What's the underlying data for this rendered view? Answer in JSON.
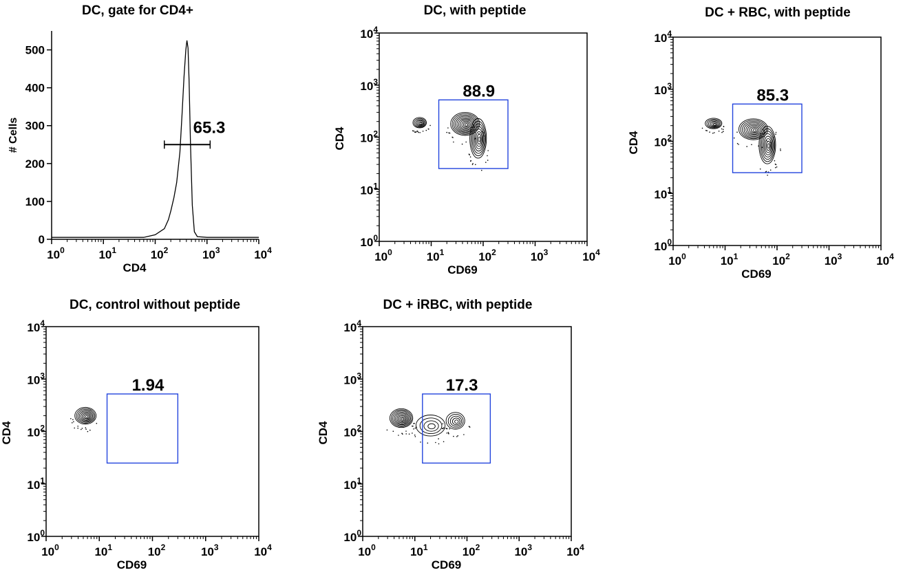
{
  "chart_data": [
    {
      "type": "histogram",
      "title": "DC, gate for CD4+",
      "xlabel": "CD4",
      "ylabel": "# Cells",
      "x_scale": "log",
      "xlim": [
        1,
        10000
      ],
      "ylim": [
        0,
        550
      ],
      "x_ticks": [
        1,
        10,
        100,
        1000,
        10000
      ],
      "y_ticks": [
        0,
        100,
        200,
        300,
        400,
        500
      ],
      "gate": {
        "label": "65.3",
        "x_range": [
          150,
          1150
        ],
        "y": 250
      },
      "curve": [
        [
          1,
          5
        ],
        [
          60,
          5
        ],
        [
          100,
          12
        ],
        [
          150,
          28
        ],
        [
          180,
          52
        ],
        [
          200,
          75
        ],
        [
          230,
          110
        ],
        [
          260,
          150
        ],
        [
          300,
          230
        ],
        [
          330,
          330
        ],
        [
          360,
          430
        ],
        [
          390,
          500
        ],
        [
          410,
          525
        ],
        [
          430,
          505
        ],
        [
          450,
          420
        ],
        [
          480,
          250
        ],
        [
          520,
          90
        ],
        [
          570,
          20
        ],
        [
          650,
          7
        ],
        [
          1000,
          5
        ],
        [
          10000,
          5
        ]
      ]
    },
    {
      "type": "contour",
      "title": "DC, with peptide",
      "xlabel": "CD69",
      "ylabel": "CD4",
      "x_scale": "log",
      "y_scale": "log",
      "xlim": [
        1,
        10000
      ],
      "ylim": [
        1,
        10000
      ],
      "gate": {
        "label": "88.9",
        "x_range": [
          14,
          300
        ],
        "y_range": [
          25,
          520
        ]
      },
      "clusters": [
        {
          "center": [
            6,
            190
          ],
          "spread": [
            0.13,
            0.1
          ],
          "levels": 6
        },
        {
          "center": [
            45,
            180
          ],
          "spread": [
            0.28,
            0.22
          ],
          "levels": 10
        },
        {
          "center": [
            80,
            95
          ],
          "spread": [
            0.16,
            0.38
          ],
          "levels": 8
        }
      ]
    },
    {
      "type": "contour",
      "title": "DC + RBC, with peptide",
      "xlabel": "CD69",
      "ylabel": "CD4",
      "x_scale": "log",
      "y_scale": "log",
      "xlim": [
        1,
        10000
      ],
      "ylim": [
        1,
        10000
      ],
      "gate": {
        "label": "85.3",
        "x_range": [
          14,
          300
        ],
        "y_range": [
          25,
          520
        ]
      },
      "clusters": [
        {
          "center": [
            6,
            220
          ],
          "spread": [
            0.16,
            0.1
          ],
          "levels": 6
        },
        {
          "center": [
            35,
            170
          ],
          "spread": [
            0.28,
            0.2
          ],
          "levels": 9
        },
        {
          "center": [
            65,
            85
          ],
          "spread": [
            0.16,
            0.36
          ],
          "levels": 8
        }
      ]
    },
    {
      "type": "contour",
      "title": "DC, control without peptide",
      "xlabel": "CD69",
      "ylabel": "CD4",
      "x_scale": "log",
      "y_scale": "log",
      "xlim": [
        1,
        10000
      ],
      "ylim": [
        1,
        10000
      ],
      "gate": {
        "label": "1.94",
        "x_range": [
          14,
          300
        ],
        "y_range": [
          25,
          520
        ]
      },
      "clusters": [
        {
          "center": [
            5.5,
            200
          ],
          "spread": [
            0.2,
            0.16
          ],
          "levels": 8
        }
      ]
    },
    {
      "type": "contour",
      "title": "DC + iRBC, with peptide",
      "xlabel": "CD69",
      "ylabel": "CD4",
      "x_scale": "log",
      "y_scale": "log",
      "xlim": [
        1,
        10000
      ],
      "ylim": [
        1,
        10000
      ],
      "gate": {
        "label": "17.3",
        "x_range": [
          14,
          280
        ],
        "y_range": [
          25,
          520
        ]
      },
      "clusters": [
        {
          "center": [
            5.5,
            180
          ],
          "spread": [
            0.22,
            0.18
          ],
          "levels": 9
        },
        {
          "center": [
            20,
            130
          ],
          "spread": [
            0.28,
            0.2
          ],
          "levels": 4
        },
        {
          "center": [
            60,
            160
          ],
          "spread": [
            0.18,
            0.16
          ],
          "levels": 5
        }
      ]
    }
  ]
}
